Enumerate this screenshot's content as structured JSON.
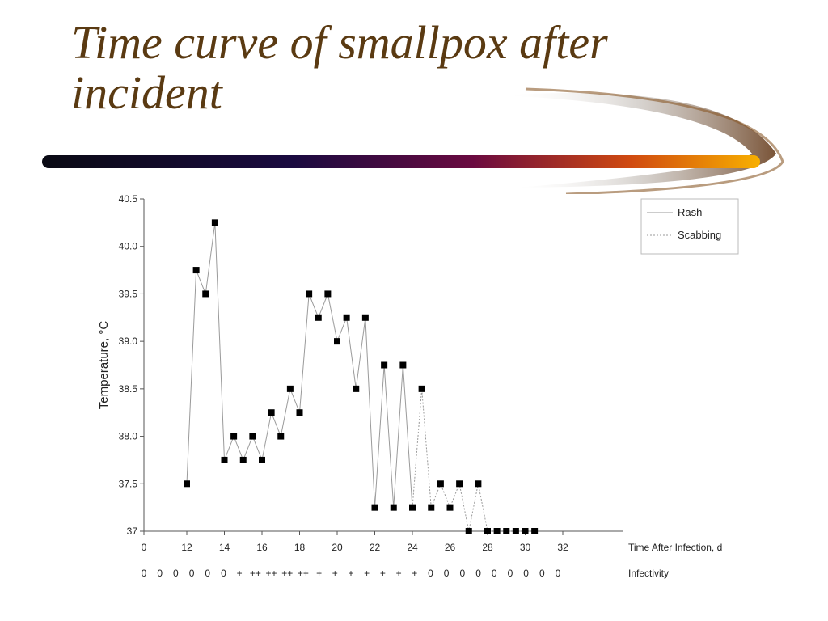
{
  "slide": {
    "title": "Time curve of smallpox after incident"
  },
  "colors": {
    "title": "#5a3a12",
    "bar_start": "#0a0a14",
    "bar_mid": "#7a0a3a",
    "bar_end": "#f5a000",
    "marker": "#000000",
    "line": "#9a9a9a"
  },
  "chart_data": {
    "type": "line",
    "ylabel": "Temperature, °C",
    "xlabel": "Time After Infection, d",
    "x_tick_labels": [
      "0",
      "12",
      "14",
      "16",
      "18",
      "20",
      "22",
      "24",
      "26",
      "28",
      "30",
      "32"
    ],
    "y_tick_labels": [
      "37",
      "37.5",
      "38.0",
      "38.5",
      "39.0",
      "39.5",
      "40.0",
      "40.5"
    ],
    "ylim": [
      37,
      40.5
    ],
    "legend_placement": "top-right",
    "grid": false,
    "series": [
      {
        "name": "Rash",
        "style": "solid",
        "x": [
          12,
          12.5,
          13,
          13.5,
          14,
          14.5,
          15,
          15.5,
          16,
          16.5,
          17,
          17.5,
          18,
          18.5,
          19,
          19.5,
          20,
          20.5,
          21,
          21.5,
          22,
          22.5,
          23,
          23.5,
          24
        ],
        "values": [
          37.5,
          39.75,
          39.5,
          40.25,
          37.75,
          38.0,
          37.75,
          38.0,
          37.75,
          38.25,
          38.0,
          38.5,
          38.25,
          39.5,
          39.25,
          39.5,
          39.0,
          39.25,
          38.5,
          39.25,
          37.25,
          38.75,
          37.25,
          38.75,
          37.25
        ]
      },
      {
        "name": "Scabbing",
        "style": "dotted",
        "x": [
          24,
          24.5,
          25,
          25.5,
          26,
          26.5,
          27,
          27.5,
          28,
          28.5,
          29,
          29.5,
          30,
          30.5
        ],
        "values": [
          37.25,
          38.5,
          37.25,
          37.5,
          37.25,
          37.5,
          37.0,
          37.5,
          37.0,
          37.0,
          37.0,
          37.0,
          37.0,
          37.0
        ]
      }
    ],
    "infectivity": {
      "label": "Infectivity",
      "symbols": [
        "0",
        "0",
        "0",
        "0",
        "0",
        "0",
        "+",
        "++",
        "++",
        "++",
        "++",
        "+",
        "+",
        "+",
        "+",
        "+",
        "+",
        "+",
        "0",
        "0",
        "0",
        "0",
        "0",
        "0",
        "0",
        "0",
        "0"
      ]
    }
  }
}
